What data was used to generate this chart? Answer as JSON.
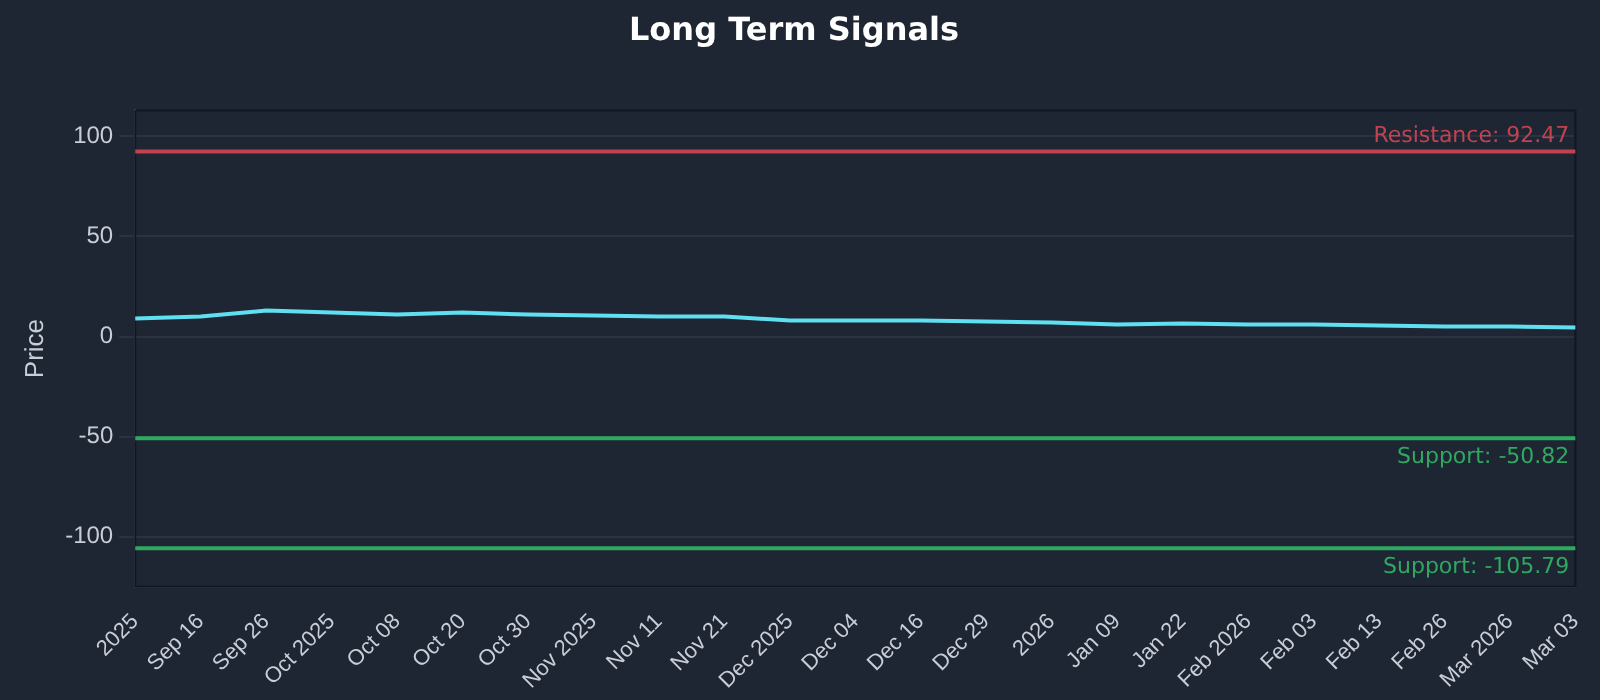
{
  "chart_data": {
    "type": "line",
    "title": "Long Term Signals",
    "ylabel": "Price",
    "categories": [
      "2025",
      "Sep 16",
      "Sep 26",
      "Oct 2025",
      "Oct 08",
      "Oct 20",
      "Oct 30",
      "Nov 2025",
      "Nov 11",
      "Nov 21",
      "Dec 2025",
      "Dec 04",
      "Dec 16",
      "Dec 29",
      "2026",
      "Jan 09",
      "Jan 22",
      "Feb 2026",
      "Feb 03",
      "Feb 13",
      "Feb 26",
      "Mar 2026",
      "Mar 03"
    ],
    "series": [
      {
        "color": "#5ee0f0",
        "values": [
          9,
          10,
          13,
          12,
          11,
          12,
          11,
          10.5,
          10,
          10,
          8,
          8,
          8,
          7.5,
          7,
          6,
          6.5,
          6,
          6,
          5.5,
          5,
          5,
          4.5
        ]
      }
    ],
    "ylim": [
      -125,
      113
    ],
    "yticks": [
      -100,
      -50,
      0,
      50,
      100
    ],
    "grid": "y",
    "legend": false,
    "marker": "none",
    "line_style": "solid",
    "ref_lines": [
      {
        "axis": "y",
        "value": 92.47,
        "label": "Resistance: 92.47",
        "color": "#c0434f"
      },
      {
        "axis": "y",
        "value": -50.82,
        "label": "Support: -50.82",
        "color": "#2fa860"
      },
      {
        "axis": "y",
        "value": -105.79,
        "label": "Support: -105.79",
        "color": "#2fa860"
      }
    ]
  }
}
